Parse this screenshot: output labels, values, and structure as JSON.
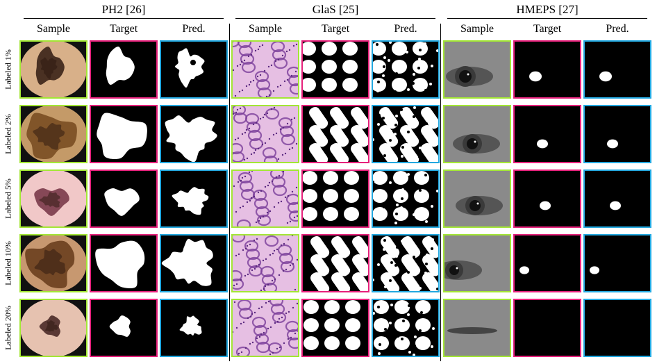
{
  "datasets": [
    {
      "name": "PH2 [26]",
      "kind": "skin"
    },
    {
      "name": "GlaS [25]",
      "kind": "gland"
    },
    {
      "name": "HMEPS [27]",
      "kind": "eye"
    }
  ],
  "columns": [
    "Sample",
    "Target",
    "Pred."
  ],
  "rows": [
    "Labeled 1%",
    "Labeled 2%",
    "Labeled 5%",
    "Labeled 10%",
    "Labeled 20%"
  ],
  "colors": {
    "sample_border": "#a3e635",
    "target_border": "#e6217b",
    "pred_border": "#22a8e0"
  }
}
